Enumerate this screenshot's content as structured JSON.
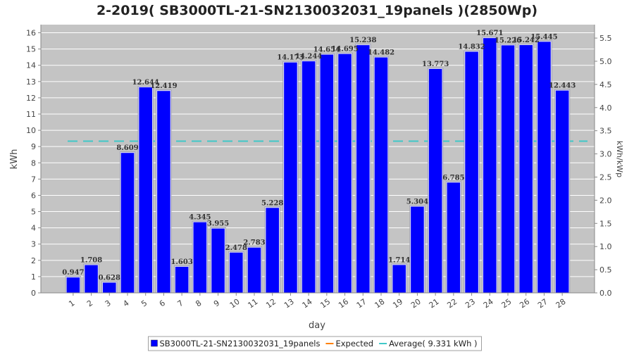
{
  "chart_data": {
    "type": "bar",
    "title": "2-2019( SB3000TL-21-SN2130032031_19panels )(2850Wp)",
    "xlabel": "day",
    "ylabel": "kWh",
    "ylabel_right": "kWh/kWp",
    "ylim": [
      0,
      16.5
    ],
    "ylim_right": [
      0,
      5.79
    ],
    "yticks": [
      0,
      1,
      2,
      3,
      4,
      5,
      6,
      7,
      8,
      9,
      10,
      11,
      12,
      13,
      14,
      15,
      16
    ],
    "yticks_right": [
      0.0,
      0.5,
      1.0,
      1.5,
      2.0,
      2.5,
      3.0,
      3.5,
      4.0,
      4.5,
      5.0,
      5.5
    ],
    "categories": [
      "1",
      "2",
      "3",
      "4",
      "5",
      "6",
      "7",
      "8",
      "9",
      "10",
      "11",
      "12",
      "13",
      "14",
      "15",
      "16",
      "17",
      "18",
      "19",
      "20",
      "21",
      "22",
      "23",
      "24",
      "25",
      "26",
      "27",
      "28"
    ],
    "series": [
      {
        "name": "SB3000TL-21-SN2130032031_19panels",
        "values": [
          0.947,
          1.708,
          0.628,
          8.609,
          12.644,
          12.419,
          1.603,
          4.345,
          3.955,
          2.478,
          2.783,
          5.228,
          14.173,
          14.244,
          14.654,
          14.695,
          15.238,
          14.482,
          1.714,
          5.304,
          13.773,
          6.785,
          14.832,
          15.671,
          15.226,
          15.242,
          15.445,
          12.443
        ],
        "color": "#0000ff"
      }
    ],
    "value_labels": [
      "0.947",
      "1.708",
      "0.628",
      "8.609",
      "12.644",
      "12.419",
      "1.603",
      "4.345",
      "3.955",
      "2.478",
      "2.783",
      "5.228",
      "14.173",
      "14.244",
      "14.654",
      "14.695",
      "15.238",
      "14.482",
      "1.714",
      "5.304",
      "13.773",
      "6.785",
      "14.832",
      "15.671",
      "15.226",
      "15.242",
      "15.445",
      "12.443"
    ],
    "average": {
      "value": 9.331,
      "color": "#40c8c8"
    },
    "grid": true,
    "legend": {
      "position": "bottom",
      "items": [
        {
          "label": "SB3000TL-21-SN2130032031_19panels",
          "color": "#0000ff"
        },
        {
          "label": "Expected",
          "color": "#ff8000"
        },
        {
          "label": "Average( 9.331 kWh )",
          "color": "#40c8c8"
        }
      ]
    }
  }
}
